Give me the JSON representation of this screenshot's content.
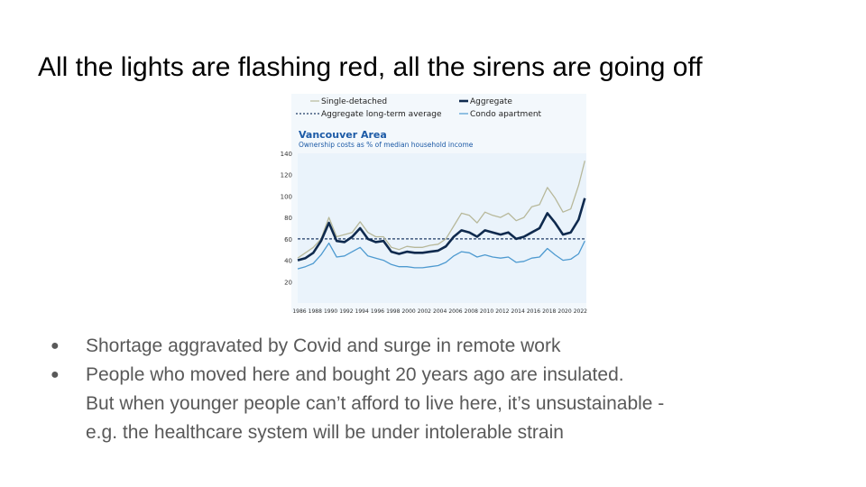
{
  "slide": {
    "title": "All the lights are flashing red, all the sirens are going off",
    "bullets": [
      {
        "lines": [
          "Shortage aggravated by Covid and surge in remote work"
        ]
      },
      {
        "lines": [
          "People who moved here and bought 20 years ago are insulated.",
          "But when younger people can’t afford to live here, it’s unsustainable -",
          "e.g. the healthcare system will be under intolerable strain"
        ]
      }
    ]
  },
  "chart_data": {
    "type": "line",
    "title": "Vancouver Area",
    "subtitle": "Ownership costs as % of median household income",
    "ylim": [
      0,
      140
    ],
    "yticks": [
      20,
      40,
      60,
      80,
      100,
      120,
      140
    ],
    "xlim": [
      1986,
      2023
    ],
    "xticks": [
      1986,
      1988,
      1990,
      1992,
      1994,
      1996,
      1998,
      2000,
      2002,
      2004,
      2006,
      2008,
      2010,
      2012,
      2014,
      2016,
      2018,
      2020,
      2022
    ],
    "legend_position": "top",
    "colors": {
      "single_detached": "#b7b89a",
      "aggregate": "#0f2a4e",
      "long_term_avg": "#1f3b66",
      "condo": "#4e9ad0",
      "plot_bg": "#eaf3fb",
      "title": "#1c5aa6"
    },
    "series": [
      {
        "name": "Single-detached",
        "x": [
          1986,
          1987,
          1988,
          1989,
          1990,
          1991,
          1992,
          1993,
          1994,
          1995,
          1996,
          1997,
          1998,
          1999,
          2000,
          2001,
          2002,
          2003,
          2004,
          2005,
          2006,
          2007,
          2008,
          2009,
          2010,
          2011,
          2012,
          2013,
          2014,
          2015,
          2016,
          2017,
          2018,
          2019,
          2020,
          2021,
          2022,
          2022.8
        ],
        "y": [
          42,
          47,
          52,
          60,
          80,
          62,
          64,
          66,
          76,
          66,
          62,
          62,
          52,
          50,
          53,
          52,
          52,
          54,
          55,
          60,
          72,
          84,
          82,
          75,
          85,
          82,
          80,
          84,
          77,
          80,
          90,
          92,
          108,
          98,
          85,
          88,
          110,
          133
        ]
      },
      {
        "name": "Aggregate",
        "x": [
          1986,
          1987,
          1988,
          1989,
          1990,
          1991,
          1992,
          1993,
          1994,
          1995,
          1996,
          1997,
          1998,
          1999,
          2000,
          2001,
          2002,
          2003,
          2004,
          2005,
          2006,
          2007,
          2008,
          2009,
          2010,
          2011,
          2012,
          2013,
          2014,
          2015,
          2016,
          2017,
          2018,
          2019,
          2020,
          2021,
          2022,
          2022.8
        ],
        "y": [
          40,
          42,
          47,
          58,
          75,
          58,
          57,
          62,
          70,
          60,
          57,
          58,
          48,
          46,
          48,
          47,
          47,
          48,
          49,
          53,
          62,
          68,
          66,
          62,
          68,
          66,
          64,
          66,
          60,
          62,
          66,
          70,
          84,
          75,
          64,
          66,
          78,
          98
        ]
      },
      {
        "name": "Condo apartment",
        "x": [
          1986,
          1987,
          1988,
          1989,
          1990,
          1991,
          1992,
          1993,
          1994,
          1995,
          1996,
          1997,
          1998,
          1999,
          2000,
          2001,
          2002,
          2003,
          2004,
          2005,
          2006,
          2007,
          2008,
          2009,
          2010,
          2011,
          2012,
          2013,
          2014,
          2015,
          2016,
          2017,
          2018,
          2019,
          2020,
          2021,
          2022,
          2022.8
        ],
        "y": [
          32,
          34,
          37,
          45,
          56,
          43,
          44,
          48,
          52,
          44,
          42,
          40,
          36,
          34,
          34,
          33,
          33,
          34,
          35,
          38,
          44,
          48,
          47,
          43,
          45,
          43,
          42,
          43,
          38,
          39,
          42,
          43,
          51,
          45,
          40,
          41,
          46,
          58
        ]
      }
    ],
    "reference_lines": [
      {
        "name": "Aggregate long-term average",
        "y": 60
      }
    ]
  }
}
